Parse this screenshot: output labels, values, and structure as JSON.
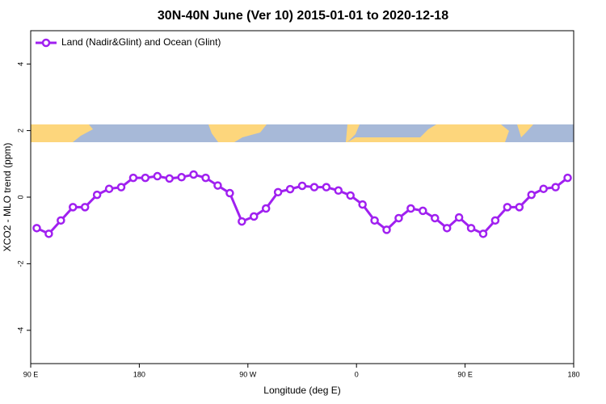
{
  "chart_data": {
    "type": "line",
    "title": "30N-40N June (Ver 10)   2015-01-01 to 2020-12-18",
    "x_label": "Longitude (deg E)",
    "y_label": "XCO2 - MLO trend (ppm)",
    "x": [
      95,
      105,
      115,
      125,
      135,
      145,
      155,
      165,
      175,
      185,
      195,
      205,
      215,
      225,
      235,
      245,
      255,
      265,
      275,
      285,
      295,
      305,
      315,
      325,
      335,
      345,
      355,
      365,
      375,
      385,
      395,
      405,
      415,
      425,
      435,
      445,
      455,
      465,
      475,
      485,
      495,
      505,
      515,
      525,
      535
    ],
    "series": [
      {
        "name": "Land (Nadir&Glint) and Ocean (Glint)",
        "color": "#a020f0",
        "values": [
          -0.93,
          -1.1,
          -0.7,
          -0.3,
          -0.3,
          0.07,
          0.25,
          0.3,
          0.58,
          0.58,
          0.63,
          0.56,
          0.6,
          0.68,
          0.58,
          0.35,
          0.12,
          -0.73,
          -0.58,
          -0.34,
          0.15,
          0.24,
          0.34,
          0.3,
          0.3,
          0.2,
          0.05,
          -0.22,
          -0.7,
          -0.98,
          -0.63,
          -0.34,
          -0.41,
          -0.63,
          -0.93,
          -0.61,
          -0.93,
          -1.1,
          -0.7,
          -0.3,
          -0.3,
          0.07,
          0.25,
          0.3,
          0.58
        ]
      }
    ],
    "xlim": [
      90,
      540
    ],
    "xticks": [
      {
        "value": 90,
        "label": "90 E"
      },
      180,
      {
        "value": 270,
        "label": "90 W"
      },
      {
        "value": 360,
        "label": "0"
      },
      {
        "value": 450,
        "label": "90 E"
      },
      {
        "value": 540,
        "label": "180"
      }
    ],
    "ylim": [
      -5,
      5
    ],
    "yticks": [
      -4,
      -2,
      0,
      2,
      4
    ],
    "legend": "top-left"
  }
}
